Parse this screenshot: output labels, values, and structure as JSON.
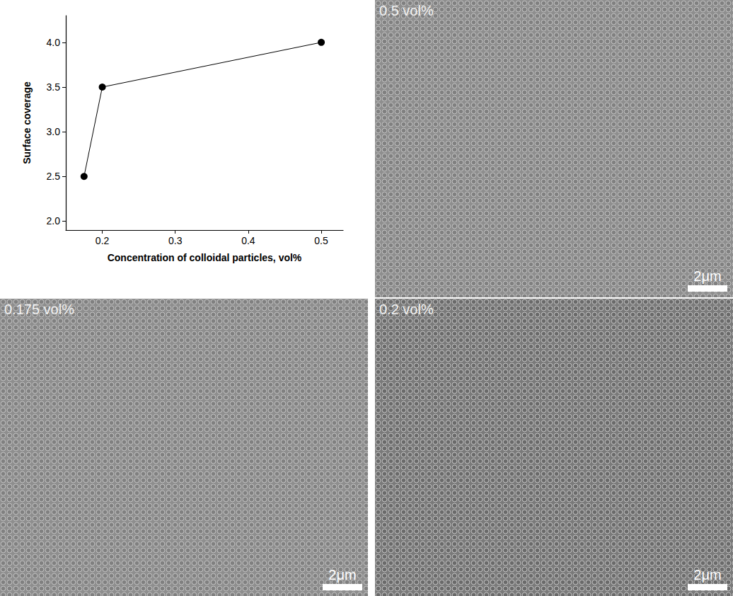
{
  "chart_data": {
    "type": "line",
    "x_label": "Concentration of colloidal particles, vol%",
    "y_label": "Surface coverage",
    "x": [
      0.175,
      0.2,
      0.5
    ],
    "values": [
      2.5,
      3.5,
      4.0
    ],
    "color": "#000000",
    "marker": "circle",
    "line_style": "solid",
    "xlim": [
      0.15,
      0.53
    ],
    "xticks": [
      0.2,
      0.3,
      0.4,
      0.5
    ],
    "ylim": [
      1.9,
      4.3
    ],
    "yticks": [
      {
        "value": 2,
        "label": "2.0"
      },
      {
        "value": 2.5,
        "label": "2.5"
      },
      {
        "value": 3,
        "label": "3.0"
      },
      {
        "value": 3.5,
        "label": "3.5"
      },
      {
        "value": 4,
        "label": "4.0"
      }
    ],
    "grid": false
  },
  "images": [
    {
      "label": "0.5 vol%",
      "scale_bar": "2μm"
    },
    {
      "label": "0.175 vol%",
      "scale_bar": "2μm"
    },
    {
      "label": "0.2 vol%",
      "scale_bar": "2μm"
    }
  ]
}
